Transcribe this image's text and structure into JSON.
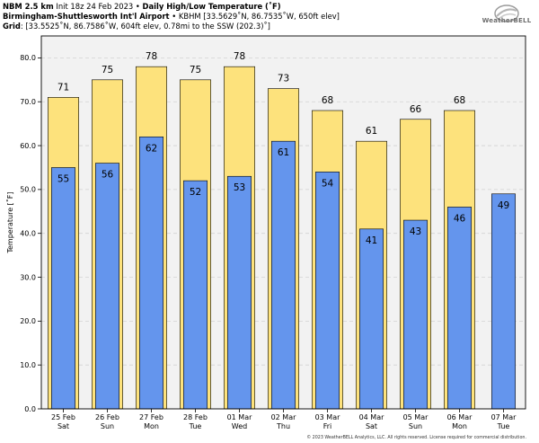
{
  "header": {
    "line1_bold": "NBM 2.5 km",
    "line1_rest": " Init 18z 24 Feb 2023 • ",
    "line1_title": "Daily High/Low Temperature (˚F)",
    "line2_bold": "Birmingham-Shuttlesworth Int'l Airport",
    "line2_rest": " • KBHM [33.5629˚N, 86.7535˚W, 650ft elev]",
    "line3_bold": "Grid",
    "line3_rest": ": [33.5525˚N, 86.7586˚W, 604ft elev, 0.78mi to the SSW (202.3)˚]"
  },
  "logo": {
    "text": "WeatherBELL"
  },
  "footer": {
    "text": "© 2023 WeatherBELL Analytics, LLC. All rights reserved. License required for commercial distribution."
  },
  "colors": {
    "high": "#fde27c",
    "low": "#6495ed",
    "grid": "#d3d3d3",
    "background": "#f2f2f2"
  },
  "chart_data": {
    "type": "bar",
    "ylabel": "Temperature [˚F]",
    "ylim": [
      0,
      85
    ],
    "yticks": [
      0,
      10,
      20,
      30,
      40,
      50,
      60,
      70,
      80
    ],
    "ytick_labels": [
      "0.0",
      "10.0",
      "20.0",
      "30.0",
      "40.0",
      "50.0",
      "60.0",
      "70.0",
      "80.0"
    ],
    "grid": "horizontal dashed",
    "categories": [
      {
        "date": "25 Feb",
        "day": "Sat"
      },
      {
        "date": "26 Feb",
        "day": "Sun"
      },
      {
        "date": "27 Feb",
        "day": "Mon"
      },
      {
        "date": "28 Feb",
        "day": "Tue"
      },
      {
        "date": "01 Mar",
        "day": "Wed"
      },
      {
        "date": "02 Mar",
        "day": "Thu"
      },
      {
        "date": "03 Mar",
        "day": "Fri"
      },
      {
        "date": "04 Mar",
        "day": "Sat"
      },
      {
        "date": "05 Mar",
        "day": "Sun"
      },
      {
        "date": "06 Mar",
        "day": "Mon"
      },
      {
        "date": "07 Mar",
        "day": "Tue"
      }
    ],
    "series": [
      {
        "values": [
          71,
          75,
          78,
          75,
          78,
          73,
          68,
          61,
          66,
          68,
          null
        ]
      },
      {
        "values": [
          55,
          56,
          62,
          52,
          53,
          61,
          54,
          41,
          43,
          46,
          49
        ]
      }
    ]
  }
}
